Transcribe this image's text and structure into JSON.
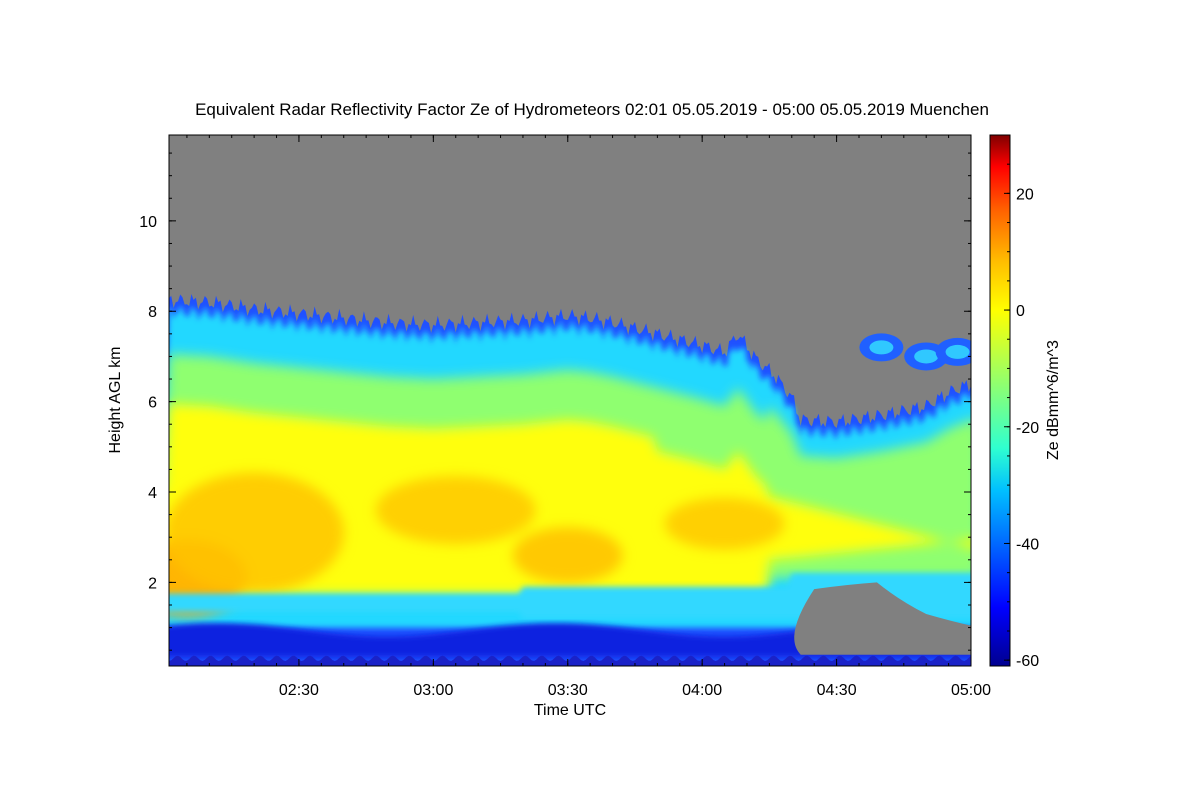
{
  "chart_data": {
    "type": "heatmap",
    "title": "Equivalent Radar Reflectivity Factor Ze of Hydrometeors   02:01 05.05.2019 - 05:00 05.05.2019 Muenchen",
    "xlabel": "Time UTC",
    "ylabel": "Height AGL km",
    "colorbar_label": "Ze dBmm^6/m^3",
    "x_range_minutes_utc": [
      121,
      300
    ],
    "y_range_km": [
      0.15,
      11.9
    ],
    "x_ticks": [
      {
        "label": "02:30",
        "minutes": 150
      },
      {
        "label": "03:00",
        "minutes": 180
      },
      {
        "label": "03:30",
        "minutes": 210
      },
      {
        "label": "04:00",
        "minutes": 240
      },
      {
        "label": "04:30",
        "minutes": 270
      },
      {
        "label": "05:00",
        "minutes": 300
      }
    ],
    "y_ticks": [
      {
        "label": "2",
        "value": 2
      },
      {
        "label": "4",
        "value": 4
      },
      {
        "label": "6",
        "value": 6
      },
      {
        "label": "8",
        "value": 8
      },
      {
        "label": "10",
        "value": 10
      }
    ],
    "colorbar_range": [
      -61,
      30
    ],
    "colorbar_ticks": [
      {
        "label": "20",
        "value": 20
      },
      {
        "label": "0",
        "value": 0
      },
      {
        "label": "-20",
        "value": -20
      },
      {
        "label": "-40",
        "value": -40
      },
      {
        "label": "-60",
        "value": -60
      }
    ],
    "colormap": [
      "#00008f",
      "#0000ff",
      "#00bfff",
      "#2fffd0",
      "#9fff60",
      "#ffff00",
      "#ffbf00",
      "#ff6000",
      "#ff0000",
      "#800000"
    ],
    "no_data_color": "#808080",
    "cloud_top_km": [
      [
        121,
        8.25
      ],
      [
        130,
        8.2
      ],
      [
        140,
        8.05
      ],
      [
        150,
        7.95
      ],
      [
        160,
        7.85
      ],
      [
        170,
        7.75
      ],
      [
        180,
        7.7
      ],
      [
        190,
        7.75
      ],
      [
        200,
        7.8
      ],
      [
        210,
        7.9
      ],
      [
        215,
        7.85
      ],
      [
        220,
        7.75
      ],
      [
        230,
        7.5
      ],
      [
        238,
        7.3
      ],
      [
        245,
        7.1
      ],
      [
        248,
        7.5
      ],
      [
        252,
        6.95
      ],
      [
        256,
        6.6
      ],
      [
        260,
        6.1
      ],
      [
        262,
        5.6
      ],
      [
        270,
        5.55
      ],
      [
        280,
        5.7
      ],
      [
        290,
        5.9
      ],
      [
        295,
        6.2
      ],
      [
        300,
        6.4
      ]
    ],
    "upper_patches": [
      {
        "x": 280,
        "y": 7.2,
        "value": -40
      },
      {
        "x": 290,
        "y": 7.0,
        "value": -35
      },
      {
        "x": 297,
        "y": 7.1,
        "value": -38
      }
    ],
    "core_max_dBZ": 8
  }
}
